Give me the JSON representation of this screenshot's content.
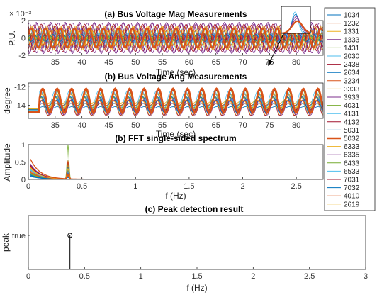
{
  "chart_data": [
    {
      "type": "line",
      "title": "(a) Bus Voltage Mag Measurements",
      "xlabel": "Time (sec)",
      "ylabel": "P.U.",
      "y_exponent": "× 10⁻³",
      "xlim": [
        30,
        85
      ],
      "ylim": [
        -2,
        2
      ],
      "xticks": [
        35,
        40,
        45,
        50,
        55,
        60,
        65,
        70,
        75,
        80
      ],
      "yticks": [
        -2,
        0,
        2
      ],
      "oscillation_hz": 0.37,
      "highlighted_series": "5032",
      "amplitude_range": [
        0.2,
        1.8
      ]
    },
    {
      "type": "line",
      "title": "(b) Bus Voltage Ang Measurements",
      "xlabel": "Time (sec)",
      "ylabel": "degree",
      "xlim": [
        30,
        85
      ],
      "ylim": [
        -15.4,
        -11.6
      ],
      "xticks": [
        35,
        40,
        45,
        50,
        55,
        60,
        65,
        70,
        75,
        80
      ],
      "yticks": [
        -12,
        -14
      ],
      "oscillation_hz": 0.37,
      "highlighted_series": "5032",
      "highlighted_range": [
        -14.8,
        -12.2
      ],
      "has_zoom_inset": true
    },
    {
      "type": "line",
      "title": "(b) FFT single-sided spectrum",
      "xlabel": "f (Hz)",
      "ylabel": "Amplitude",
      "xlim": [
        0,
        2.75
      ],
      "ylim": [
        0,
        1
      ],
      "xticks": [
        0,
        0.5,
        1,
        1.5,
        2,
        2.5
      ],
      "yticks": [
        0,
        0.5,
        1
      ],
      "peak_frequency": 0.37,
      "peak_amplitude": 1.0,
      "low_freq_start_amplitude": 0.72
    },
    {
      "type": "line",
      "title": "(c) Peak detection result",
      "xlabel": "f (Hz)",
      "ylabel": "peak",
      "xlim": [
        0,
        3
      ],
      "xticks": [
        0,
        0.5,
        1,
        1.5,
        2,
        2.5,
        3
      ],
      "ytick_labels": [
        "true"
      ],
      "peak_frequency": 0.37,
      "peak_value": "true"
    }
  ],
  "legend": {
    "placement": "right",
    "entries": [
      {
        "name": "1034",
        "color": "#0072BD"
      },
      {
        "name": "1232",
        "color": "#D95319"
      },
      {
        "name": "1331",
        "color": "#EDB120"
      },
      {
        "name": "1333",
        "color": "#7E2F8E"
      },
      {
        "name": "1431",
        "color": "#77AC30"
      },
      {
        "name": "2030",
        "color": "#4DBEEE"
      },
      {
        "name": "2438",
        "color": "#A2142F"
      },
      {
        "name": "2634",
        "color": "#0072BD"
      },
      {
        "name": "3234",
        "color": "#D95319"
      },
      {
        "name": "3333",
        "color": "#EDB120"
      },
      {
        "name": "3933",
        "color": "#7E2F8E"
      },
      {
        "name": "4031",
        "color": "#77AC30"
      },
      {
        "name": "4131",
        "color": "#4DBEEE"
      },
      {
        "name": "4132",
        "color": "#A2142F"
      },
      {
        "name": "5031",
        "color": "#0072BD"
      },
      {
        "name": "5032",
        "color": "#D95319",
        "bold": true
      },
      {
        "name": "6333",
        "color": "#EDB120"
      },
      {
        "name": "6335",
        "color": "#7E2F8E"
      },
      {
        "name": "6433",
        "color": "#77AC30"
      },
      {
        "name": "6533",
        "color": "#4DBEEE"
      },
      {
        "name": "7031",
        "color": "#A2142F"
      },
      {
        "name": "7032",
        "color": "#0072BD"
      },
      {
        "name": "4010",
        "color": "#D95319"
      },
      {
        "name": "2619",
        "color": "#EDB120"
      }
    ]
  }
}
